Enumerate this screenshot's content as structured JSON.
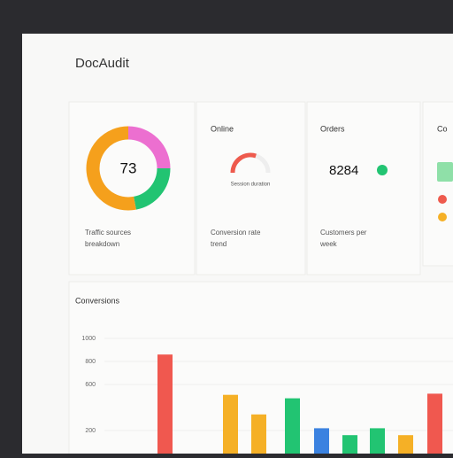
{
  "header": {
    "title": "DocAudit"
  },
  "cards": [
    {
      "value": "73",
      "segments": [
        {
          "value": 25,
          "color": "#ec6fd0"
        },
        {
          "value": 22,
          "color": "#22c472"
        },
        {
          "value": 53,
          "color": "#f5a01c"
        }
      ],
      "caption": [
        "Traffic sources",
        "breakdown"
      ]
    },
    {
      "title": "Online",
      "gauge": {
        "value": 60,
        "color": "#ee5a4d"
      },
      "gauge_label": "Session duration",
      "caption": [
        "Conversion rate",
        "trend"
      ]
    },
    {
      "title": "Orders",
      "value": "8284",
      "caption": [
        "Customers per",
        "week"
      ]
    },
    {
      "title": "Co"
    }
  ],
  "chart": {
    "title": "Conversions",
    "ylim": [
      0,
      1000
    ],
    "yticks": [
      1000,
      800,
      600,
      200
    ],
    "values": [
      860,
      510,
      340,
      480,
      220,
      160,
      220,
      160,
      520
    ],
    "colors": [
      "#f0584f",
      "#f5b026",
      "#f5b026",
      "#22c472",
      "#3b82e0",
      "#22c472",
      "#22c472",
      "#f5b026",
      "#f0584f"
    ]
  }
}
